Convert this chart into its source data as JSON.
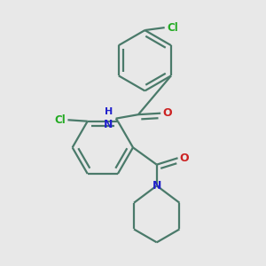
{
  "bg_color": "#e8e8e8",
  "bond_color": "#4a7a6a",
  "cl_color": "#22aa22",
  "n_color": "#2222cc",
  "o_color": "#cc2222",
  "line_width": 1.6,
  "dbo": 0.018,
  "figsize": [
    3.0,
    3.0
  ],
  "dpi": 100,
  "xlim": [
    0.0,
    1.0
  ],
  "ylim": [
    0.0,
    1.0
  ]
}
